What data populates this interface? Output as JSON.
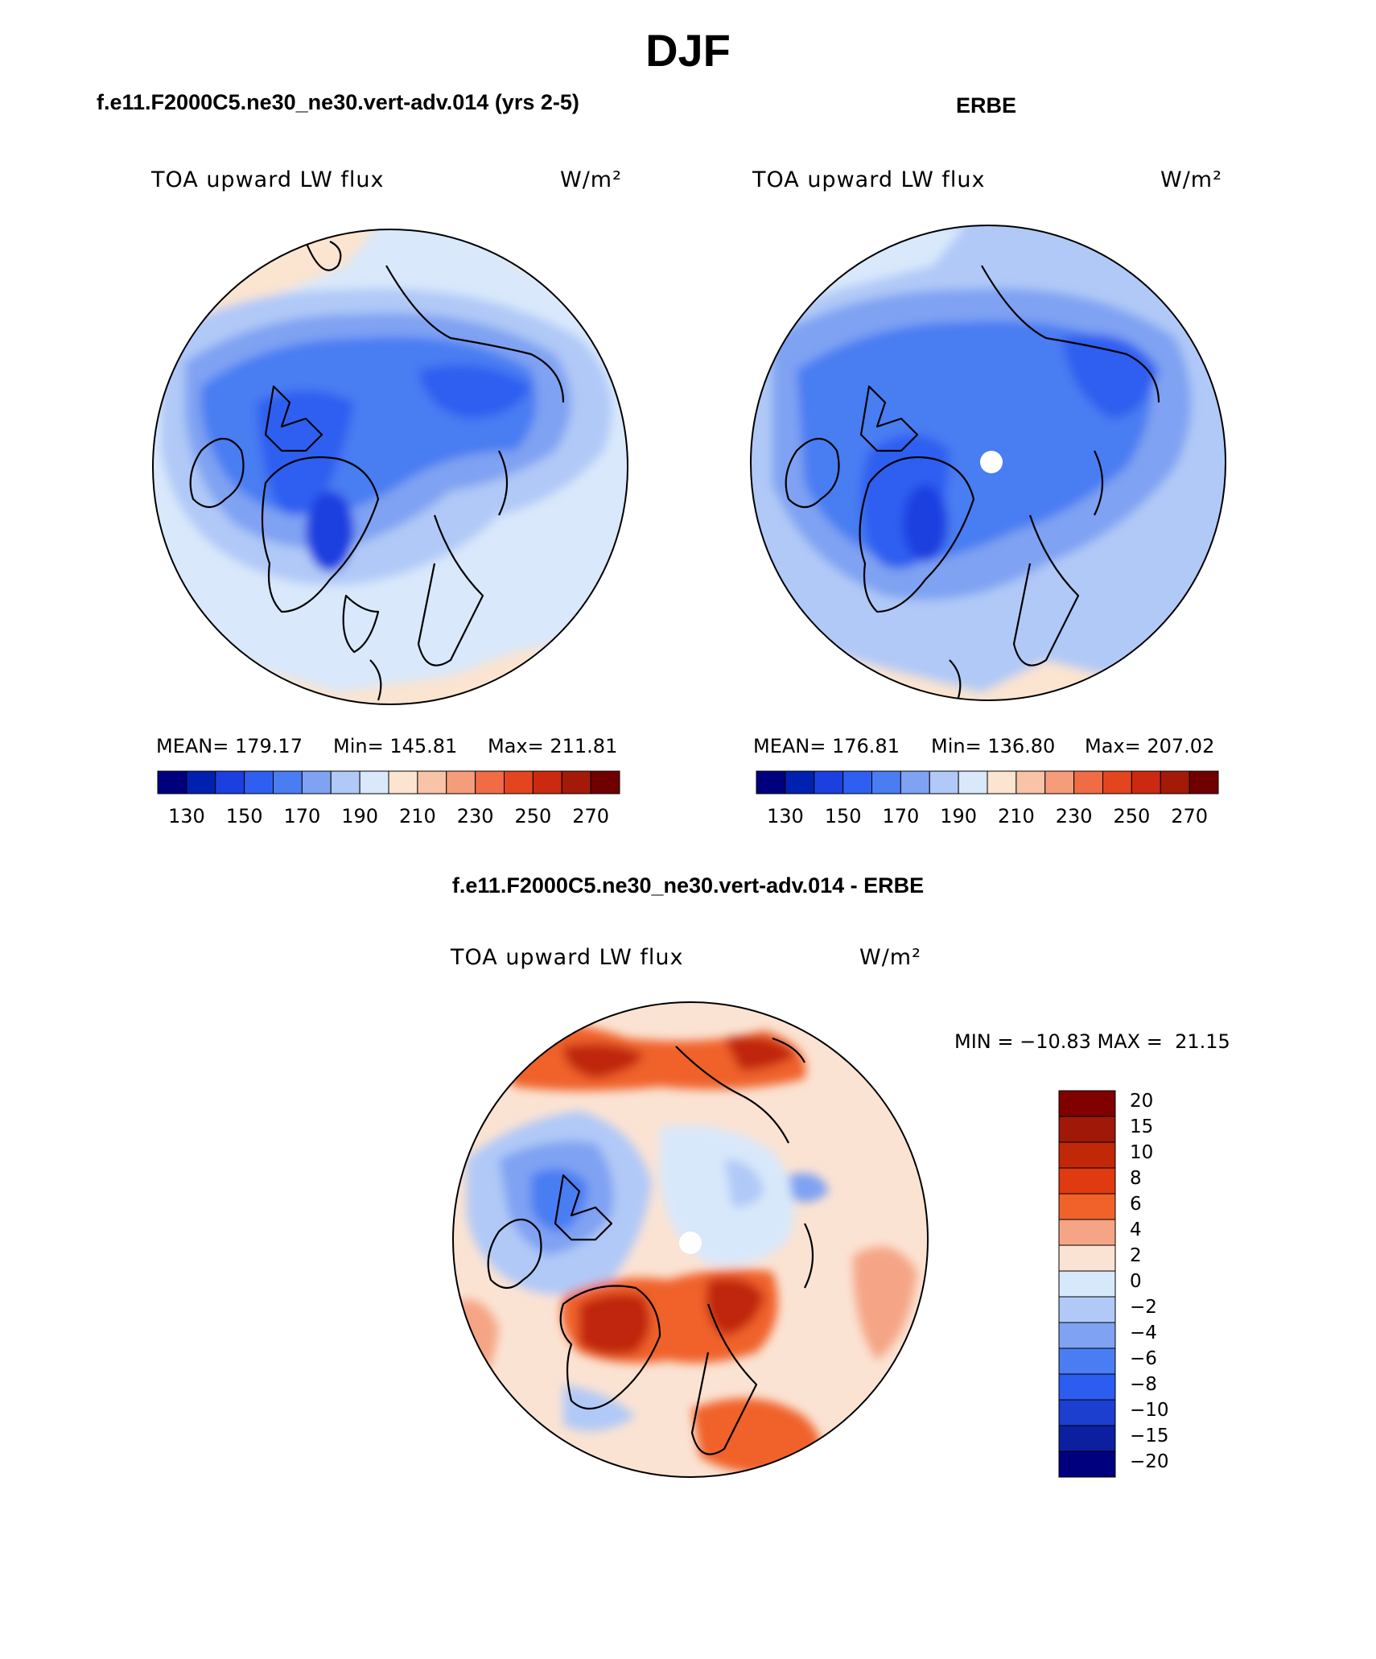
{
  "season": "DJF",
  "panels": {
    "model": {
      "case_title": "f.e11.F2000C5.ne30_ne30.vert-adv.014 (yrs 2-5)",
      "variable_label": "TOA upward LW flux",
      "units_label": "W/m²",
      "mean_text": "MEAN= 179.17",
      "min_text": "Min= 145.81",
      "max_text": "Max= 211.81",
      "colorbar_ticks": [
        "130",
        "150",
        "170",
        "190",
        "210",
        "230",
        "250",
        "270"
      ]
    },
    "obs": {
      "case_title": "ERBE",
      "variable_label": "TOA upward LW flux",
      "units_label": "W/m²",
      "mean_text": "MEAN= 176.81",
      "min_text": "Min= 136.80",
      "max_text": "Max= 207.02",
      "colorbar_ticks": [
        "130",
        "150",
        "170",
        "190",
        "210",
        "230",
        "250",
        "270"
      ]
    },
    "diff": {
      "case_title": "f.e11.F2000C5.ne30_ne30.vert-adv.014 - ERBE",
      "variable_label": "TOA upward LW flux",
      "units_label": "W/m²",
      "minmax_text": "MIN = −10.83 MAX =  21.15",
      "colorbar_ticks": [
        "20",
        "15",
        "10",
        "8",
        "6",
        "4",
        "2",
        "0",
        "−2",
        "−4",
        "−6",
        "−8",
        "−10",
        "−15",
        "−20"
      ]
    }
  },
  "colors": {
    "abs_scale": [
      "#00007f",
      "#0020b0",
      "#1c3fe0",
      "#2f5ff0",
      "#4a7df2",
      "#7fa2f2",
      "#b1c9f7",
      "#d9e8fb",
      "#fbe4d0",
      "#f8c3a7",
      "#f59c7b",
      "#f06c45",
      "#e3451e",
      "#cc2a10",
      "#a41a08",
      "#700000"
    ],
    "diff_scale": [
      "#800000",
      "#a01808",
      "#c02808",
      "#e03a10",
      "#f0622a",
      "#f5a585",
      "#fbe3d3",
      "#d8e8fb",
      "#b1c9f7",
      "#7fa2f2",
      "#4a7df2",
      "#2c5cf0",
      "#1c3fd0",
      "#0c1fa0",
      "#00007f"
    ],
    "land_outline": "#000000"
  },
  "projection": "north-polar-stereographic"
}
